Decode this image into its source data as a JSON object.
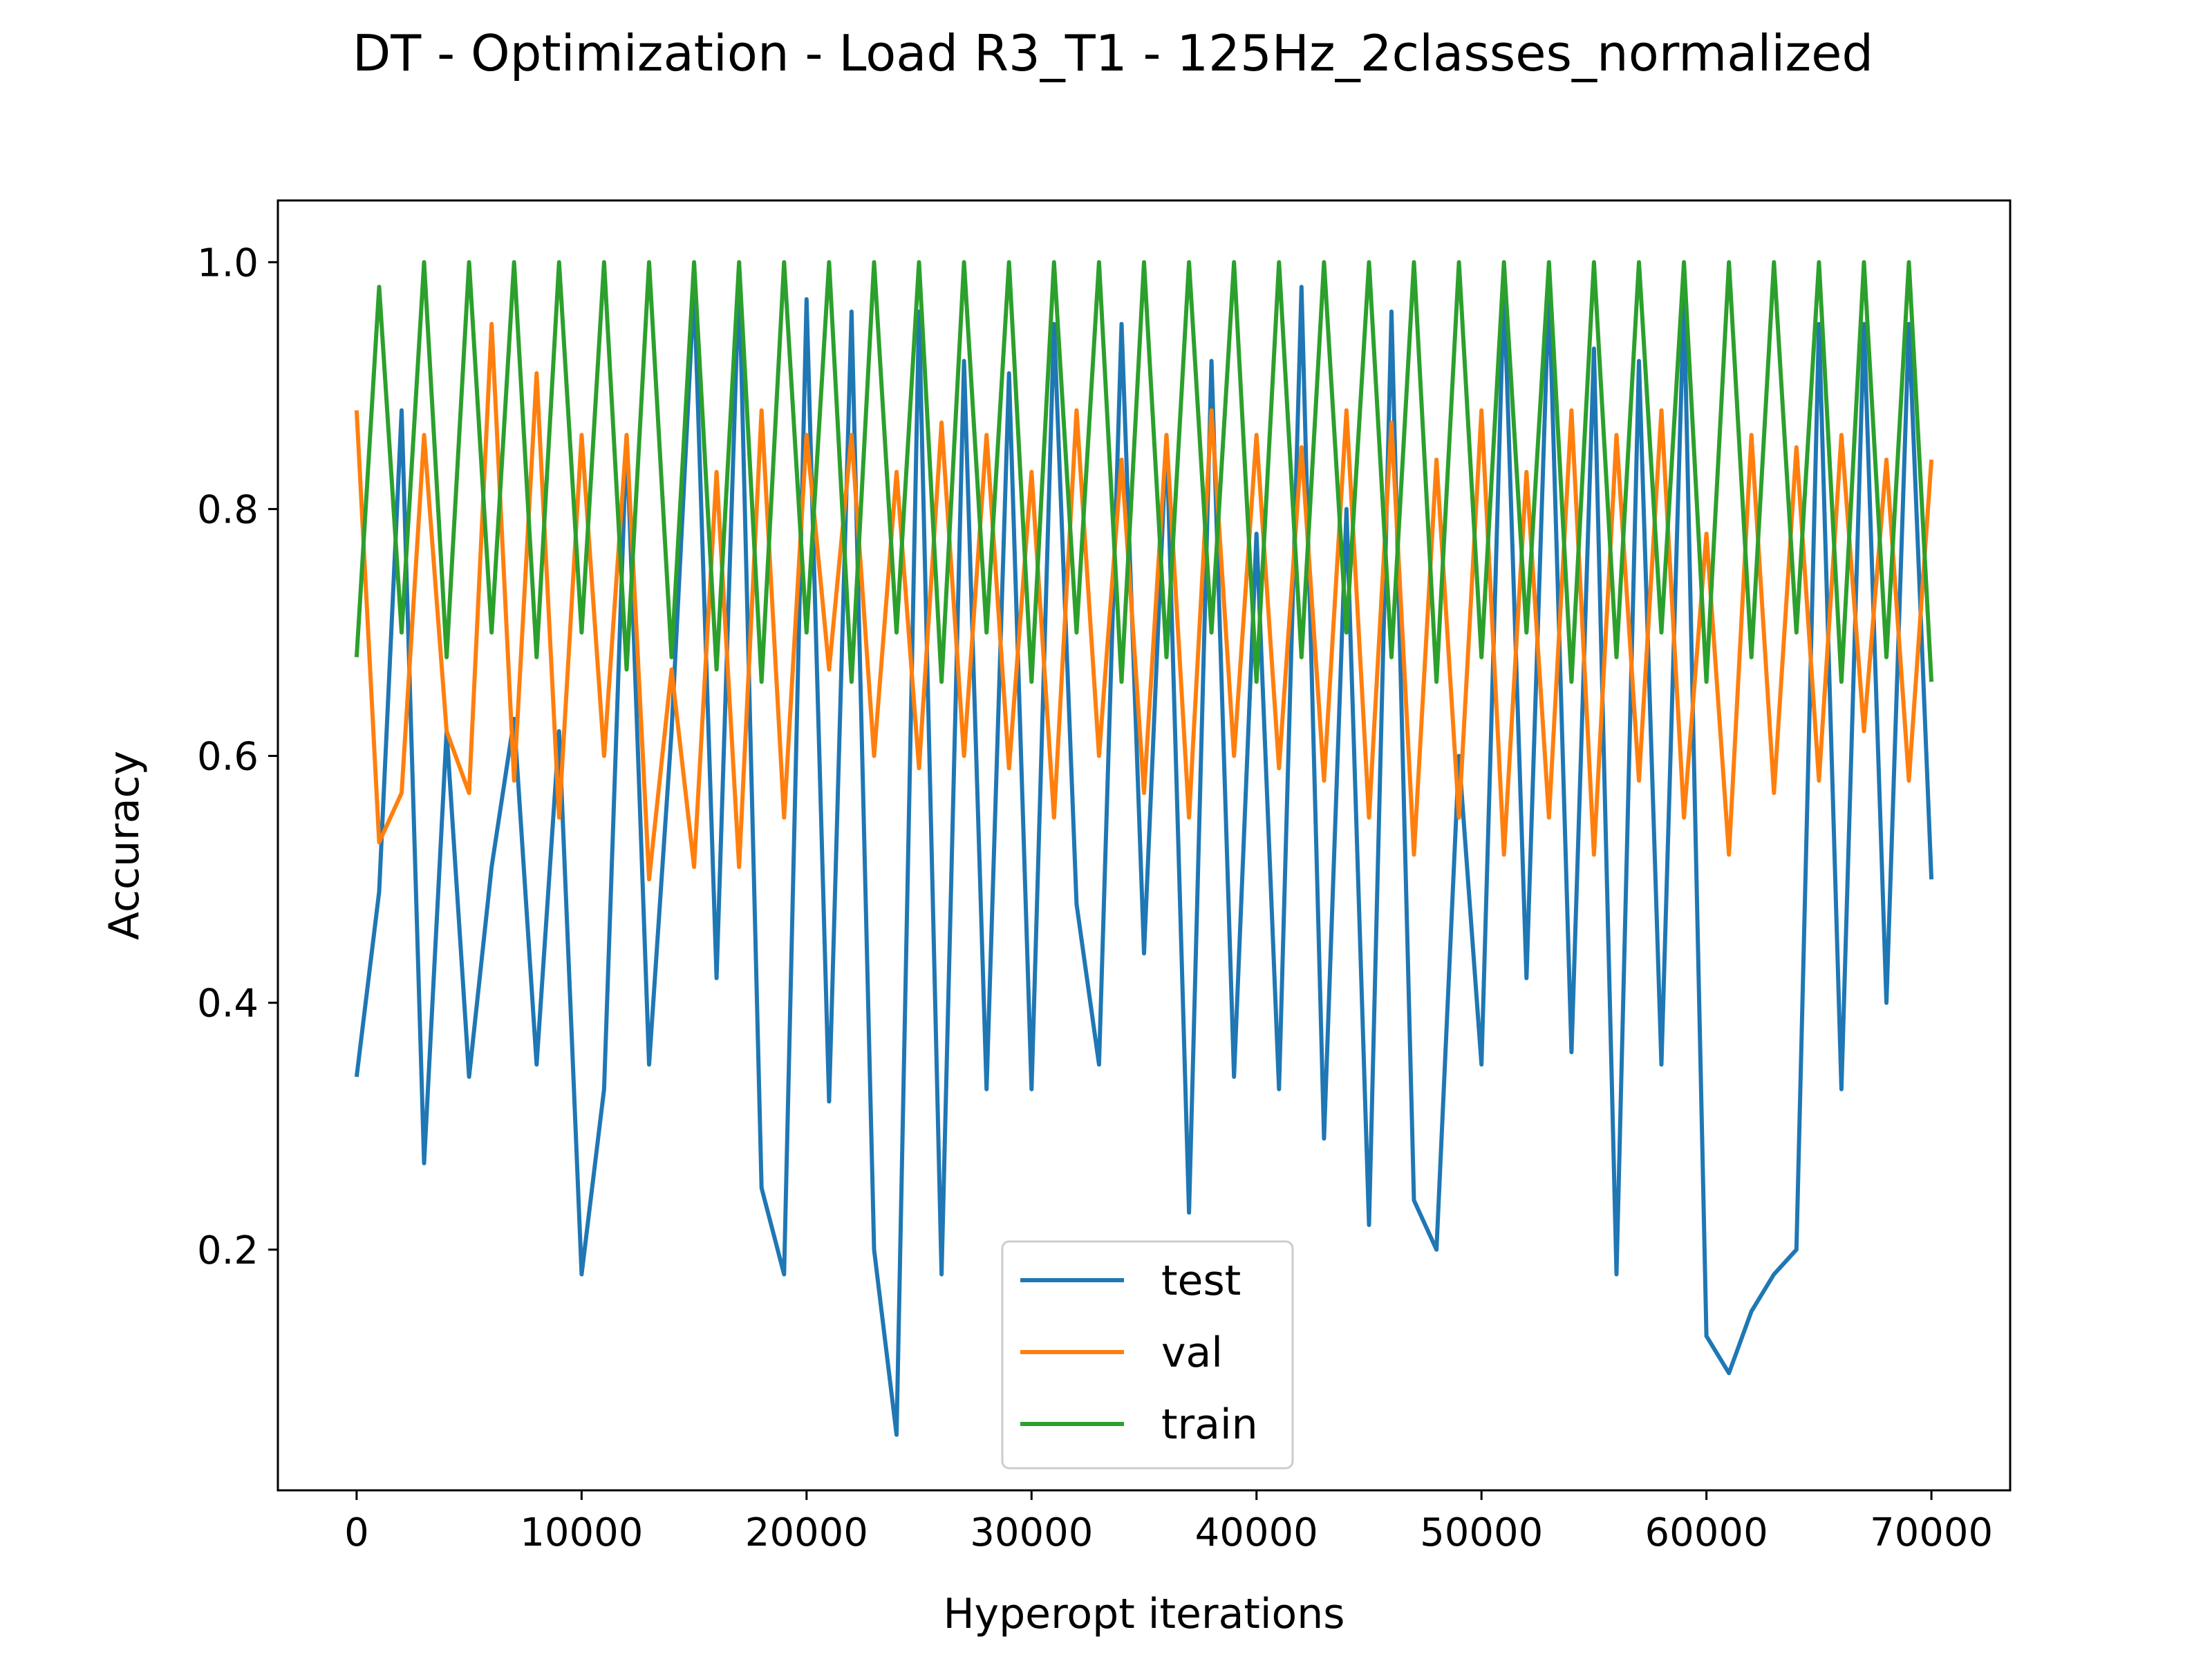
{
  "chart_data": {
    "type": "line",
    "title": "DT - Optimization - Load R3_T1 - 125Hz_2classes_normalized",
    "xlabel": "Hyperopt iterations",
    "ylabel": "Accuracy",
    "xlim": [
      -3500,
      73500
    ],
    "ylim": [
      0.005,
      1.05
    ],
    "xticks": [
      0,
      10000,
      20000,
      30000,
      40000,
      50000,
      60000,
      70000
    ],
    "xtick_labels": [
      "0",
      "10000",
      "20000",
      "30000",
      "40000",
      "50000",
      "60000",
      "70000"
    ],
    "yticks": [
      0.2,
      0.4,
      0.6,
      0.8,
      1.0
    ],
    "ytick_labels": [
      "0.2",
      "0.4",
      "0.6",
      "0.8",
      "1.0"
    ],
    "grid": false,
    "legend_position": "lower-center",
    "x": [
      0,
      1000,
      2000,
      3000,
      4000,
      5000,
      6000,
      7000,
      8000,
      9000,
      10000,
      11000,
      12000,
      13000,
      14000,
      15000,
      16000,
      17000,
      18000,
      19000,
      20000,
      21000,
      22000,
      23000,
      24000,
      25000,
      26000,
      27000,
      28000,
      29000,
      30000,
      31000,
      32000,
      33000,
      34000,
      35000,
      36000,
      37000,
      38000,
      39000,
      40000,
      41000,
      42000,
      43000,
      44000,
      45000,
      46000,
      47000,
      48000,
      49000,
      50000,
      51000,
      52000,
      53000,
      54000,
      55000,
      56000,
      57000,
      58000,
      59000,
      60000,
      61000,
      62000,
      63000,
      64000,
      65000,
      66000,
      67000,
      68000,
      69000,
      70000
    ],
    "series": [
      {
        "name": "test",
        "color": "#1f77b4",
        "values": [
          0.34,
          0.49,
          0.88,
          0.27,
          0.62,
          0.34,
          0.51,
          0.63,
          0.35,
          0.62,
          0.18,
          0.33,
          0.86,
          0.35,
          0.62,
          0.98,
          0.42,
          0.99,
          0.25,
          0.18,
          0.97,
          0.32,
          0.96,
          0.2,
          0.05,
          0.96,
          0.18,
          0.92,
          0.33,
          0.91,
          0.33,
          0.95,
          0.48,
          0.35,
          0.95,
          0.44,
          0.86,
          0.23,
          0.92,
          0.34,
          0.78,
          0.33,
          0.98,
          0.29,
          0.8,
          0.22,
          0.96,
          0.24,
          0.2,
          0.6,
          0.35,
          0.98,
          0.42,
          0.98,
          0.36,
          0.93,
          0.18,
          0.92,
          0.35,
          0.97,
          0.13,
          0.1,
          0.15,
          0.18,
          0.2,
          0.95,
          0.33,
          0.95,
          0.4,
          0.95,
          0.5
        ]
      },
      {
        "name": "val",
        "color": "#ff7f0e",
        "values": [
          0.88,
          0.53,
          0.57,
          0.86,
          0.62,
          0.57,
          0.95,
          0.58,
          0.91,
          0.55,
          0.86,
          0.6,
          0.86,
          0.5,
          0.67,
          0.51,
          0.83,
          0.51,
          0.88,
          0.55,
          0.86,
          0.67,
          0.86,
          0.6,
          0.83,
          0.59,
          0.87,
          0.6,
          0.86,
          0.59,
          0.83,
          0.55,
          0.88,
          0.6,
          0.84,
          0.57,
          0.86,
          0.55,
          0.88,
          0.6,
          0.86,
          0.59,
          0.85,
          0.58,
          0.88,
          0.55,
          0.87,
          0.52,
          0.84,
          0.55,
          0.88,
          0.52,
          0.83,
          0.55,
          0.88,
          0.52,
          0.86,
          0.58,
          0.88,
          0.55,
          0.78,
          0.52,
          0.86,
          0.57,
          0.85,
          0.58,
          0.86,
          0.62,
          0.84,
          0.58,
          0.84
        ]
      },
      {
        "name": "train",
        "color": "#2ca02c",
        "values": [
          0.68,
          0.98,
          0.7,
          1.0,
          0.68,
          1.0,
          0.7,
          1.0,
          0.68,
          1.0,
          0.7,
          1.0,
          0.67,
          1.0,
          0.68,
          1.0,
          0.67,
          1.0,
          0.66,
          1.0,
          0.7,
          1.0,
          0.66,
          1.0,
          0.7,
          1.0,
          0.66,
          1.0,
          0.7,
          1.0,
          0.66,
          1.0,
          0.7,
          1.0,
          0.66,
          1.0,
          0.68,
          1.0,
          0.7,
          1.0,
          0.66,
          1.0,
          0.68,
          1.0,
          0.7,
          1.0,
          0.68,
          1.0,
          0.66,
          1.0,
          0.68,
          1.0,
          0.7,
          1.0,
          0.66,
          1.0,
          0.68,
          1.0,
          0.7,
          1.0,
          0.66,
          1.0,
          0.68,
          1.0,
          0.7,
          1.0,
          0.66,
          1.0,
          0.68,
          1.0,
          0.66
        ]
      }
    ]
  }
}
